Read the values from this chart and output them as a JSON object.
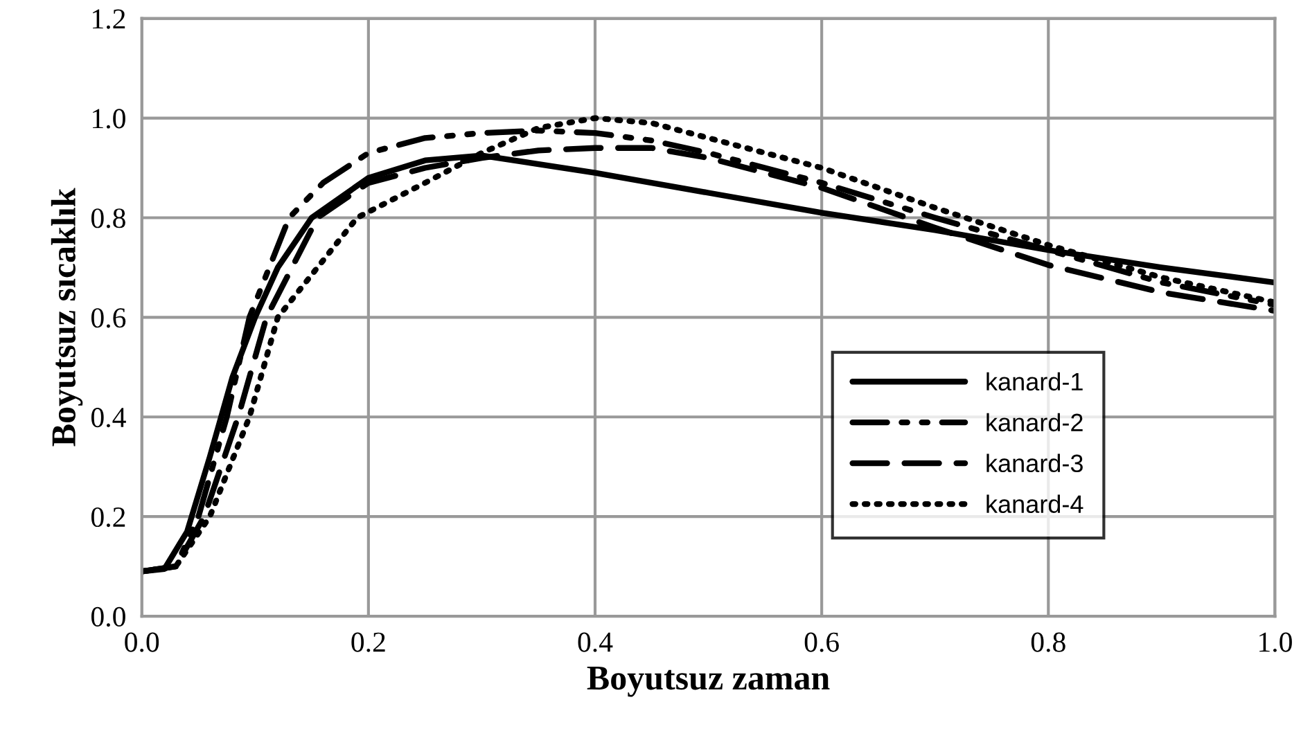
{
  "chart_data": {
    "type": "line",
    "xlabel": "Boyutsuz zaman",
    "ylabel": "Boyutsuz sıcaklık",
    "xlim": [
      0,
      1
    ],
    "xticks": [
      {
        "value": 0,
        "label": "0.0"
      },
      {
        "value": 0.2,
        "label": "0.2"
      },
      {
        "value": 0.4,
        "label": "0.4"
      },
      {
        "value": 0.6,
        "label": "0.6"
      },
      {
        "value": 0.8,
        "label": "0.8"
      },
      {
        "value": 1,
        "label": "1.0"
      }
    ],
    "ylim": [
      0,
      1.2
    ],
    "yticks": [
      {
        "value": 0,
        "label": "0.0"
      },
      {
        "value": 0.2,
        "label": "0.2"
      },
      {
        "value": 0.4,
        "label": "0.4"
      },
      {
        "value": 0.6,
        "label": "0.6"
      },
      {
        "value": 0.8,
        "label": "0.8"
      },
      {
        "value": 1,
        "label": "1.0"
      },
      {
        "value": 1.2,
        "label": "1.2"
      }
    ],
    "grid": true,
    "legend": "bottom right",
    "marker": "none",
    "series": [
      {
        "name": "kanard-1",
        "color": "#000000",
        "line_style": "solid",
        "x": [
          0,
          0.02,
          0.04,
          0.06,
          0.08,
          0.1,
          0.12,
          0.15,
          0.2,
          0.25,
          0.3,
          0.4,
          0.5,
          0.6,
          0.7,
          0.8,
          0.9,
          1.0
        ],
        "values": [
          0.09,
          0.095,
          0.17,
          0.32,
          0.48,
          0.6,
          0.7,
          0.8,
          0.88,
          0.915,
          0.925,
          0.89,
          0.85,
          0.81,
          0.775,
          0.735,
          0.7,
          0.67
        ]
      },
      {
        "name": "kanard-2",
        "color": "#000000",
        "line_style": "dashdot",
        "x": [
          0,
          0.03,
          0.05,
          0.075,
          0.095,
          0.13,
          0.16,
          0.2,
          0.25,
          0.3,
          0.35,
          0.4,
          0.45,
          0.5,
          0.6,
          0.7,
          0.8,
          0.9,
          1.0
        ],
        "values": [
          0.09,
          0.1,
          0.2,
          0.4,
          0.6,
          0.8,
          0.87,
          0.93,
          0.96,
          0.97,
          0.975,
          0.97,
          0.955,
          0.93,
          0.87,
          0.8,
          0.735,
          0.67,
          0.625
        ]
      },
      {
        "name": "kanard-3",
        "color": "#000000",
        "line_style": "dashed",
        "x": [
          0,
          0.03,
          0.055,
          0.085,
          0.11,
          0.155,
          0.2,
          0.25,
          0.3,
          0.35,
          0.4,
          0.45,
          0.5,
          0.6,
          0.7,
          0.8,
          0.9,
          1.0
        ],
        "values": [
          0.09,
          0.1,
          0.2,
          0.4,
          0.6,
          0.8,
          0.87,
          0.9,
          0.92,
          0.935,
          0.94,
          0.94,
          0.92,
          0.86,
          0.78,
          0.705,
          0.65,
          0.613
        ]
      },
      {
        "name": "kanard-4",
        "color": "#000000",
        "line_style": "dotted",
        "x": [
          0,
          0.03,
          0.06,
          0.095,
          0.12,
          0.19,
          0.25,
          0.3,
          0.35,
          0.4,
          0.45,
          0.5,
          0.6,
          0.7,
          0.8,
          0.9,
          1.0
        ],
        "values": [
          0.09,
          0.1,
          0.2,
          0.4,
          0.6,
          0.8,
          0.87,
          0.93,
          0.98,
          1.0,
          0.99,
          0.96,
          0.9,
          0.82,
          0.745,
          0.68,
          0.63
        ]
      }
    ]
  }
}
